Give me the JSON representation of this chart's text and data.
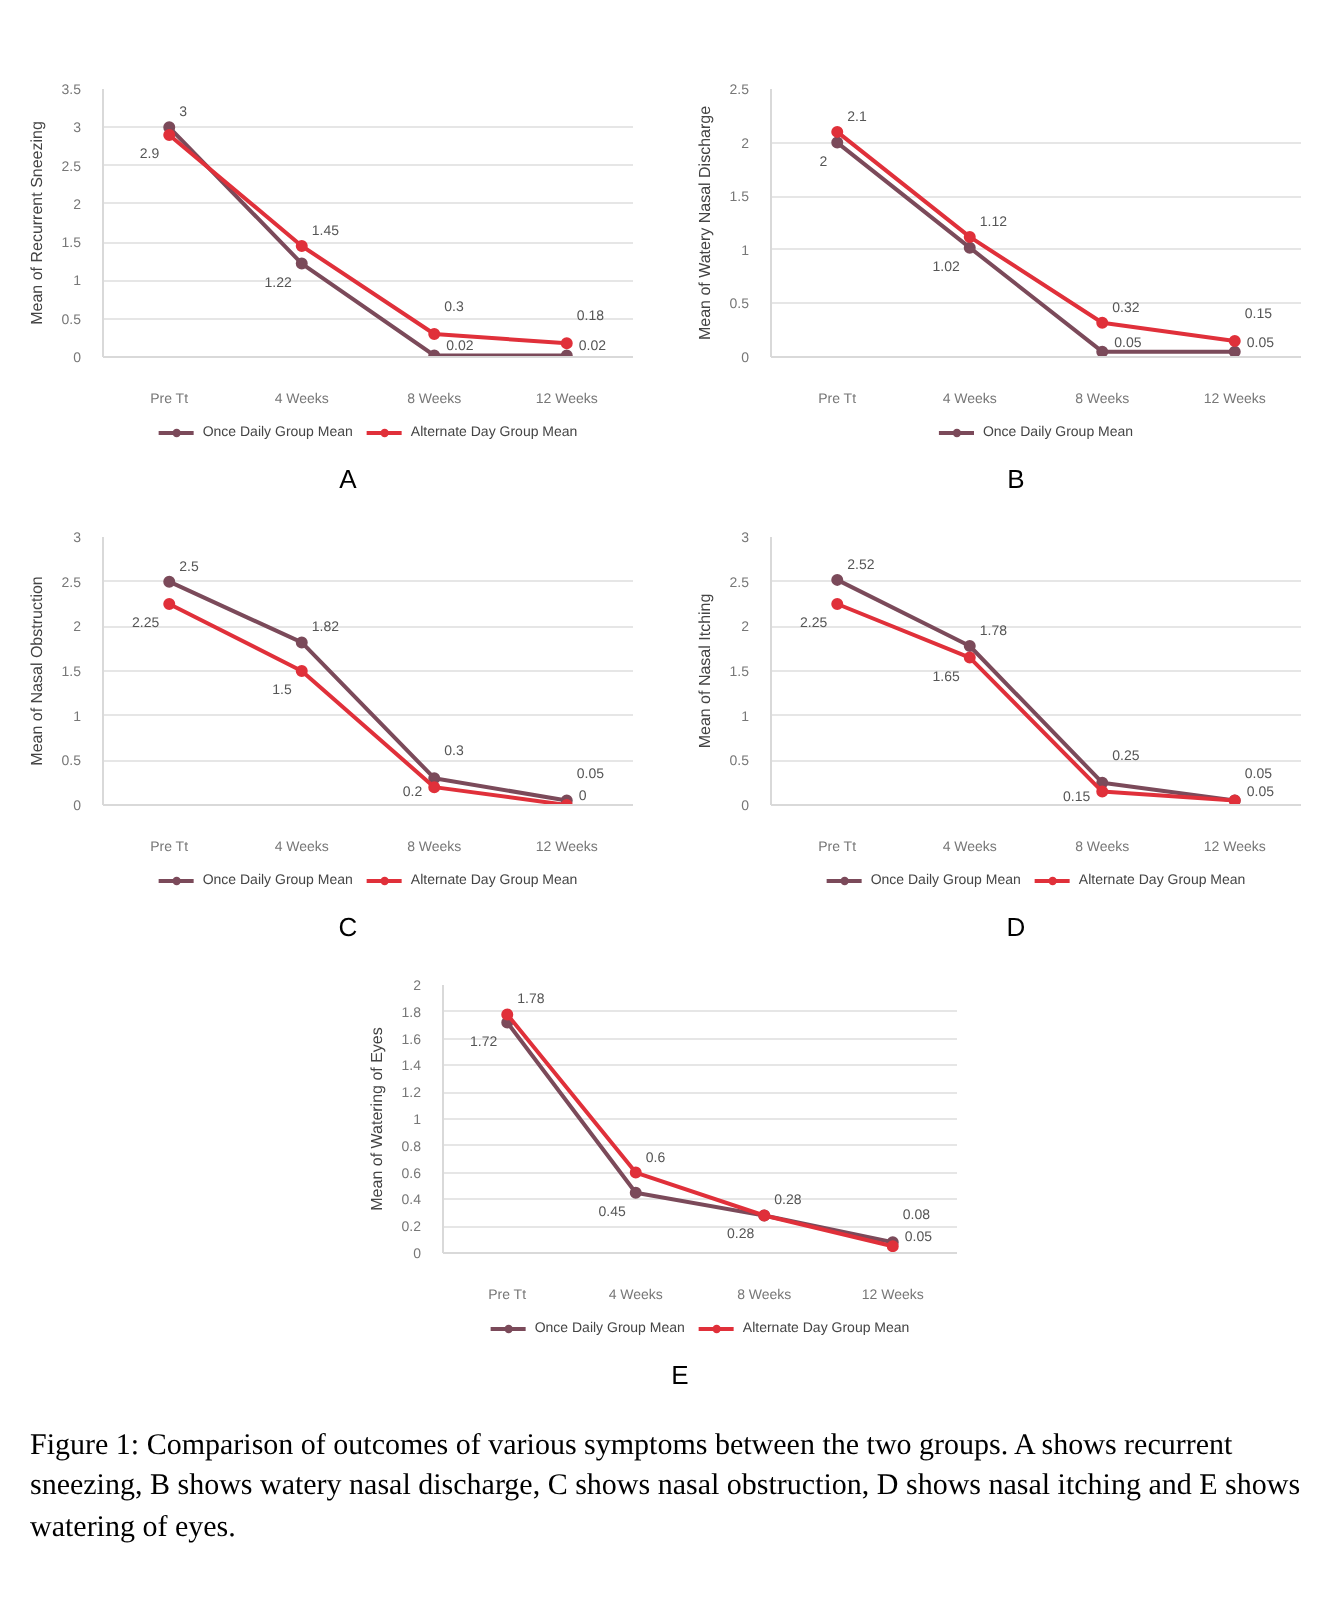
{
  "chart_data": [
    {
      "type": "line",
      "ylabel": "Mean of Recurrent Sneezing",
      "annotations": [
        "A"
      ],
      "categories": [
        "Pre Tt",
        "4 Weeks",
        "8 Weeks",
        "12 Weeks"
      ],
      "ylim": [
        0,
        3.5
      ],
      "yticks": [
        0,
        0.5,
        1,
        1.5,
        2,
        2.5,
        3,
        3.5
      ],
      "grid": "y",
      "legend": "bottom",
      "marker": "circle",
      "data_labels": true,
      "series": [
        {
          "name": "Once Daily Group Mean",
          "color": "#7b4a5a",
          "values": [
            3,
            1.22,
            0.02,
            0.02
          ]
        },
        {
          "name": "Alternate Day Group Mean",
          "color": "#e0303a",
          "values": [
            2.9,
            1.45,
            0.3,
            0.18
          ]
        }
      ]
    },
    {
      "type": "line",
      "ylabel": "Mean of Watery Nasal Discharge",
      "annotations": [
        "B"
      ],
      "categories": [
        "Pre Tt",
        "4 Weeks",
        "8 Weeks",
        "12 Weeks"
      ],
      "ylim": [
        0,
        2.5
      ],
      "yticks": [
        0,
        0.5,
        1,
        1.5,
        2,
        2.5
      ],
      "grid": "y",
      "legend": "bottom",
      "marker": "circle",
      "data_labels": true,
      "series": [
        {
          "name": "Once Daily Group Mean",
          "color": "#7b4a5a",
          "values": [
            2,
            1.02,
            0.05,
            0.05
          ]
        },
        {
          "color": "#e0303a",
          "values": [
            2.1,
            1.12,
            0.32,
            0.15
          ]
        }
      ]
    },
    {
      "type": "line",
      "ylabel": "Mean of Nasal Obstruction",
      "annotations": [
        "C"
      ],
      "categories": [
        "Pre Tt",
        "4 Weeks",
        "8 Weeks",
        "12 Weeks"
      ],
      "ylim": [
        0,
        3
      ],
      "yticks": [
        0,
        0.5,
        1,
        1.5,
        2,
        2.5,
        3
      ],
      "grid": "y",
      "legend": "bottom",
      "marker": "circle",
      "data_labels": true,
      "series": [
        {
          "name": "Once Daily Group Mean",
          "color": "#7b4a5a",
          "values": [
            2.5,
            1.82,
            0.3,
            0.05
          ]
        },
        {
          "name": "Alternate Day Group Mean",
          "color": "#e0303a",
          "values": [
            2.25,
            1.5,
            0.2,
            0
          ]
        }
      ]
    },
    {
      "type": "line",
      "ylabel": "Mean of Nasal Itching",
      "annotations": [
        "D"
      ],
      "categories": [
        "Pre Tt",
        "4 Weeks",
        "8 Weeks",
        "12 Weeks"
      ],
      "ylim": [
        0,
        3
      ],
      "yticks": [
        0,
        0.5,
        1,
        1.5,
        2,
        2.5,
        3
      ],
      "grid": "y",
      "legend": "bottom",
      "marker": "circle",
      "data_labels": true,
      "series": [
        {
          "name": "Once Daily Group Mean",
          "color": "#7b4a5a",
          "values": [
            2.52,
            1.78,
            0.25,
            0.05
          ]
        },
        {
          "name": "Alternate Day Group Mean",
          "color": "#e0303a",
          "values": [
            2.25,
            1.65,
            0.15,
            0.05
          ]
        }
      ]
    },
    {
      "type": "line",
      "ylabel": "Mean of Watering of Eyes",
      "annotations": [
        "E",
        "Figure 1: Comparison of outcomes of various symptoms between the two groups. A shows recurrent sneezing, B shows watery nasal discharge, C shows nasal obstruction, D shows nasal itching and E shows watering of eyes."
      ],
      "categories": [
        "Pre Tt",
        "4 Weeks",
        "8 Weeks",
        "12 Weeks"
      ],
      "ylim": [
        0,
        2
      ],
      "yticks": [
        0,
        0.2,
        0.4,
        0.6,
        0.8,
        1,
        1.2,
        1.4,
        1.6,
        1.8,
        2
      ],
      "grid": "y",
      "legend": "bottom",
      "marker": "circle",
      "data_labels": true,
      "series": [
        {
          "name": "Once Daily Group Mean",
          "color": "#7b4a5a",
          "values": [
            1.72,
            0.45,
            0.28,
            0.08
          ]
        },
        {
          "name": "Alternate Day Group Mean",
          "color": "#e0303a",
          "values": [
            1.78,
            0.6,
            0.28,
            0.05
          ]
        }
      ]
    }
  ]
}
